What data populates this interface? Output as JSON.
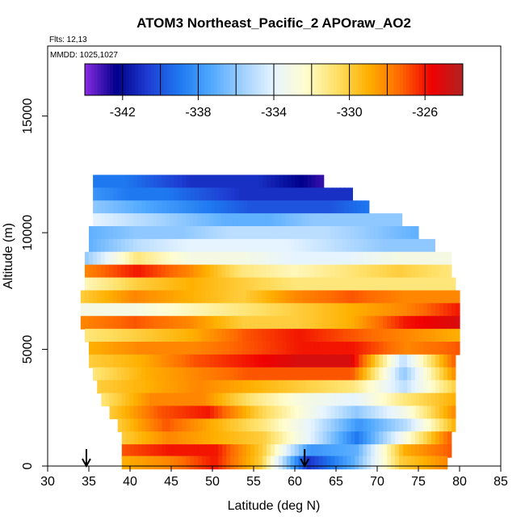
{
  "chart_data": {
    "type": "heatmap",
    "title": "ATOM3 Northeast_Pacific_2 APOraw_AO2",
    "annotations": [
      "Flts: 12,13",
      "MMDD: 1025,1027"
    ],
    "xlabel": "Latitude (deg N)",
    "ylabel": "Altitude (m)",
    "xlim": [
      30,
      85
    ],
    "ylim": [
      0,
      18000
    ],
    "x_ticks": [
      "30",
      "35",
      "40",
      "45",
      "50",
      "55",
      "60",
      "65",
      "70",
      "75",
      "80",
      "85"
    ],
    "y_ticks": [
      "0",
      "5000",
      "10000",
      "15000"
    ],
    "colorbar": {
      "range": [
        -344,
        -324
      ],
      "tick_labels": [
        "-342",
        "-338",
        "-334",
        "-330",
        "-326"
      ],
      "colors": [
        "#8a2be2",
        "#00008b",
        "#1e3cd2",
        "#1e78f0",
        "#4fa8ff",
        "#9fd0ff",
        "#e6f4ff",
        "#fffdd0",
        "#ffe066",
        "#ffb000",
        "#ff6a00",
        "#f00000",
        "#b22222"
      ]
    },
    "flight_markers_lat": [
      34.7,
      61.2
    ],
    "grid": false,
    "legend": "none",
    "rows": [
      {
        "alt": 12200,
        "lat_min": 35.5,
        "lat_max": 63.5,
        "values": [
          -339,
          -339,
          -340,
          -341,
          -341,
          -341,
          -342,
          -343
        ]
      },
      {
        "alt": 11650,
        "lat_min": 35.5,
        "lat_max": 67.0,
        "values": [
          -338,
          -339,
          -339,
          -340,
          -341,
          -341,
          -341,
          -341
        ]
      },
      {
        "alt": 11100,
        "lat_min": 35.5,
        "lat_max": 69.0,
        "values": [
          -336,
          -337,
          -338,
          -339,
          -340,
          -340,
          -340,
          -339
        ]
      },
      {
        "alt": 10550,
        "lat_min": 35.5,
        "lat_max": 73.0,
        "values": [
          -334,
          -335,
          -336,
          -337,
          -337,
          -336,
          -336,
          -336
        ]
      },
      {
        "alt": 10000,
        "lat_min": 35.0,
        "lat_max": 75.0,
        "values": [
          -337,
          -336,
          -336,
          -335,
          -335,
          -335,
          -336,
          -337
        ]
      },
      {
        "alt": 9450,
        "lat_min": 35.0,
        "lat_max": 77.0,
        "values": [
          -337,
          -335,
          -334,
          -334,
          -334,
          -335,
          -336,
          -336
        ]
      },
      {
        "alt": 8900,
        "lat_min": 34.5,
        "lat_max": 79.0,
        "values": [
          -336,
          -331,
          -333,
          -333,
          -334,
          -334,
          -333,
          -333
        ]
      },
      {
        "alt": 8350,
        "lat_min": 34.5,
        "lat_max": 79.0,
        "values": [
          -328,
          -326,
          -328,
          -331,
          -332,
          -331,
          -330,
          -331
        ]
      },
      {
        "alt": 7800,
        "lat_min": 34.5,
        "lat_max": 79.5,
        "values": [
          -332,
          -330,
          -329,
          -330,
          -331,
          -331,
          -331,
          -331
        ]
      },
      {
        "alt": 7250,
        "lat_min": 34.0,
        "lat_max": 80.0,
        "values": [
          -330,
          -328,
          -329,
          -330,
          -328,
          -327,
          -328,
          -328
        ]
      },
      {
        "alt": 6700,
        "lat_min": 34.0,
        "lat_max": 80.0,
        "values": [
          -333,
          -333,
          -332,
          -331,
          -330,
          -329,
          -328,
          -326
        ]
      },
      {
        "alt": 6150,
        "lat_min": 34.0,
        "lat_max": 80.0,
        "values": [
          -328,
          -327,
          -328,
          -330,
          -330,
          -329,
          -326,
          -325
        ]
      },
      {
        "alt": 5600,
        "lat_min": 34.5,
        "lat_max": 80.0,
        "values": [
          -331,
          -330,
          -329,
          -327,
          -326,
          -327,
          -328,
          -329
        ]
      },
      {
        "alt": 5050,
        "lat_min": 35.0,
        "lat_max": 80.0,
        "values": [
          -329,
          -328,
          -328,
          -327,
          -326,
          -326,
          -328,
          -327
        ]
      },
      {
        "alt": 4500,
        "lat_min": 35.0,
        "lat_max": 79.5,
        "values": [
          -330,
          -329,
          -327,
          -326,
          -325,
          -325,
          -335,
          -327
        ]
      },
      {
        "alt": 3950,
        "lat_min": 35.5,
        "lat_max": 79.5,
        "values": [
          -331,
          -329,
          -328,
          -327,
          -327,
          -327,
          -336,
          -328
        ]
      },
      {
        "alt": 3400,
        "lat_min": 36.0,
        "lat_max": 79.5,
        "values": [
          -330,
          -329,
          -328,
          -329,
          -330,
          -331,
          -335,
          -330
        ]
      },
      {
        "alt": 2850,
        "lat_min": 36.5,
        "lat_max": 79.5,
        "values": [
          -331,
          -328,
          -328,
          -331,
          -333,
          -334,
          -331,
          -329
        ]
      },
      {
        "alt": 2300,
        "lat_min": 37.5,
        "lat_max": 79.5,
        "values": [
          -330,
          -327,
          -326,
          -330,
          -333,
          -336,
          -333,
          -328
        ]
      },
      {
        "alt": 1750,
        "lat_min": 38.5,
        "lat_max": 79.5,
        "values": [
          -330,
          -327,
          -329,
          -331,
          -334,
          -338,
          -335,
          -329
        ]
      },
      {
        "alt": 1200,
        "lat_min": 39.0,
        "lat_max": 79.0,
        "values": [
          -330,
          -328,
          -329,
          -330,
          -334,
          -339,
          -333,
          -327
        ]
      },
      {
        "alt": 650,
        "lat_min": 39.0,
        "lat_max": 79.0,
        "values": [
          -327,
          -326,
          -326,
          -330,
          -338,
          -337,
          -329,
          -327
        ]
      },
      {
        "alt": 150,
        "lat_min": 39.0,
        "lat_max": 78.5,
        "values": [
          -329,
          -328,
          -326,
          -330,
          -341,
          -337,
          -330,
          -328
        ]
      }
    ]
  }
}
